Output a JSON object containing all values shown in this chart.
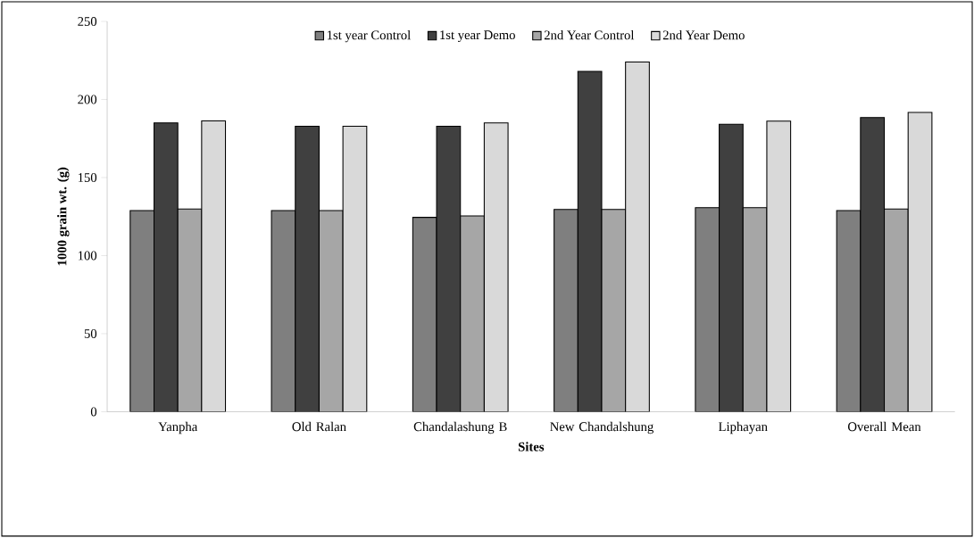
{
  "chart_data": {
    "type": "bar",
    "xlabel": "Sites",
    "ylabel": "1000 grain wt. (g)",
    "categories": [
      "Yanpha",
      "Old Ralan",
      "Chandalashung B",
      "New Chandalshung",
      "Liphayan",
      "Overall Mean"
    ],
    "series": [
      {
        "name": "1st year Control",
        "color": "#7f7f7f",
        "values": [
          128.8,
          128.8,
          124.5,
          129.6,
          130.7,
          128.8
        ]
      },
      {
        "name": "1st year Demo",
        "color": "#404040",
        "values": [
          185.0,
          182.9,
          182.9,
          218,
          184.1,
          188.4
        ]
      },
      {
        "name": "2nd Year Control",
        "color": "#a6a6a6",
        "values": [
          129.8,
          128.8,
          125.4,
          129.6,
          130.7,
          129.8
        ]
      },
      {
        "name": "2nd Year Demo",
        "color": "#d9d9d9",
        "values": [
          186.3,
          182.9,
          185.0,
          224,
          186.1,
          191.7
        ]
      }
    ],
    "ylim": [
      0,
      250
    ],
    "yticks": [
      0,
      50,
      100,
      150,
      200,
      250
    ],
    "grid": false,
    "legend": "top"
  }
}
